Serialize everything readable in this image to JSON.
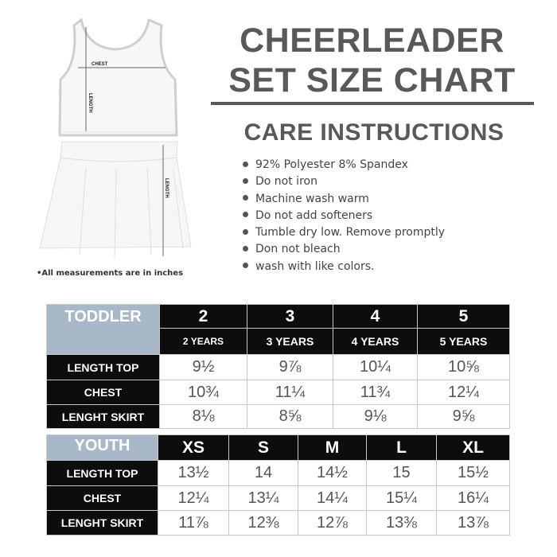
{
  "title": {
    "line1": "CHEERLEADER",
    "line2": "SET SIZE CHART"
  },
  "care": {
    "heading": "CARE INSTRUCTIONS",
    "items": [
      "92% Polyester 8% Spandex",
      "Do not iron",
      "Machine wash warm",
      "Do not add softeners",
      "Tumble dry low. Remove promptly",
      "Don not bleach",
      "wash with like colors."
    ]
  },
  "garment": {
    "chest_label": "CHEST",
    "top_length_label": "LENGTH",
    "skirt_length_label": "LENGTH"
  },
  "note": "•All measurements are in inches",
  "toddler": {
    "group": "TODDLER",
    "sizes": [
      "2",
      "3",
      "4",
      "5"
    ],
    "ages": [
      "2 YEARS",
      "3 YEARS",
      "4 YEARS",
      "5 YEARS"
    ],
    "rows": [
      {
        "label": "LENGTH TOP",
        "values": [
          "9½",
          "9⅞",
          "10¼",
          "10⅝"
        ]
      },
      {
        "label": "CHEST",
        "values": [
          "10¾",
          "11¼",
          "11¾",
          "12¼"
        ]
      },
      {
        "label": "LENGHT SKIRT",
        "values": [
          "8⅛",
          "8⅝",
          "9⅛",
          "9⅝"
        ]
      }
    ]
  },
  "youth": {
    "group": "YOUTH",
    "sizes": [
      "XS",
      "S",
      "M",
      "L",
      "XL"
    ],
    "rows": [
      {
        "label": "LENGTH TOP",
        "values": [
          "13½",
          "14",
          "14½",
          "15",
          "15½"
        ]
      },
      {
        "label": "CHEST",
        "values": [
          "12¼",
          "13¼",
          "14¼",
          "15¼",
          "16¼"
        ]
      },
      {
        "label": "LENGHT SKIRT",
        "values": [
          "11⅞",
          "12⅜",
          "12⅞",
          "13⅜",
          "13⅞"
        ]
      }
    ]
  }
}
